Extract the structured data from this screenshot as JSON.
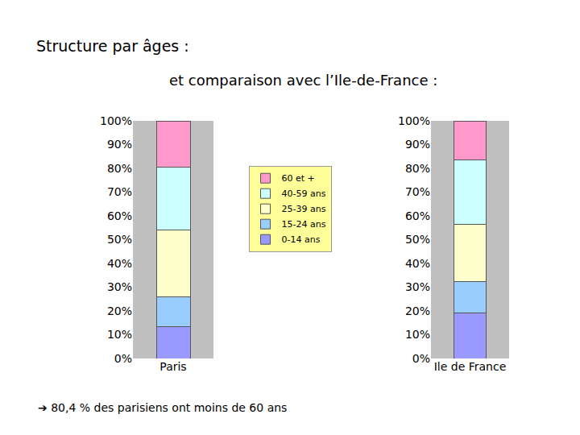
{
  "chart_data": {
    "type": "bar",
    "stacked": true,
    "title": "Structure par âges :",
    "subtitle": "et comparaison avec l’Ile-de-France :",
    "annotations": [
      "➔ 80,4 % des parisiens ont moins de 60 ans"
    ],
    "categories": [
      "Paris",
      "Ile de France"
    ],
    "series": [
      {
        "name": "0-14 ans",
        "color": "#9999ff",
        "values": [
          13.5,
          19
        ]
      },
      {
        "name": "15-24 ans",
        "color": "#99ccff",
        "values": [
          12.5,
          13.5
        ]
      },
      {
        "name": "25-39 ans",
        "color": "#ffffcc",
        "values": [
          28,
          24
        ]
      },
      {
        "name": "40-59 ans",
        "color": "#ccffff",
        "values": [
          26.4,
          27
        ]
      },
      {
        "name": "60 et +",
        "color": "#ff99cc",
        "values": [
          19.6,
          16.5
        ]
      }
    ],
    "ylim": [
      0,
      100
    ],
    "yticks": [
      {
        "value": 0,
        "label": "0%"
      },
      {
        "value": 10,
        "label": "10%"
      },
      {
        "value": 20,
        "label": "20%"
      },
      {
        "value": 30,
        "label": "30%"
      },
      {
        "value": 40,
        "label": "40%"
      },
      {
        "value": 50,
        "label": "50%"
      },
      {
        "value": 60,
        "label": "60%"
      },
      {
        "value": 70,
        "label": "70%"
      },
      {
        "value": 80,
        "label": "80%"
      },
      {
        "value": 90,
        "label": "90%"
      },
      {
        "value": 100,
        "label": "100%"
      }
    ],
    "grid": false,
    "legend": "center"
  }
}
